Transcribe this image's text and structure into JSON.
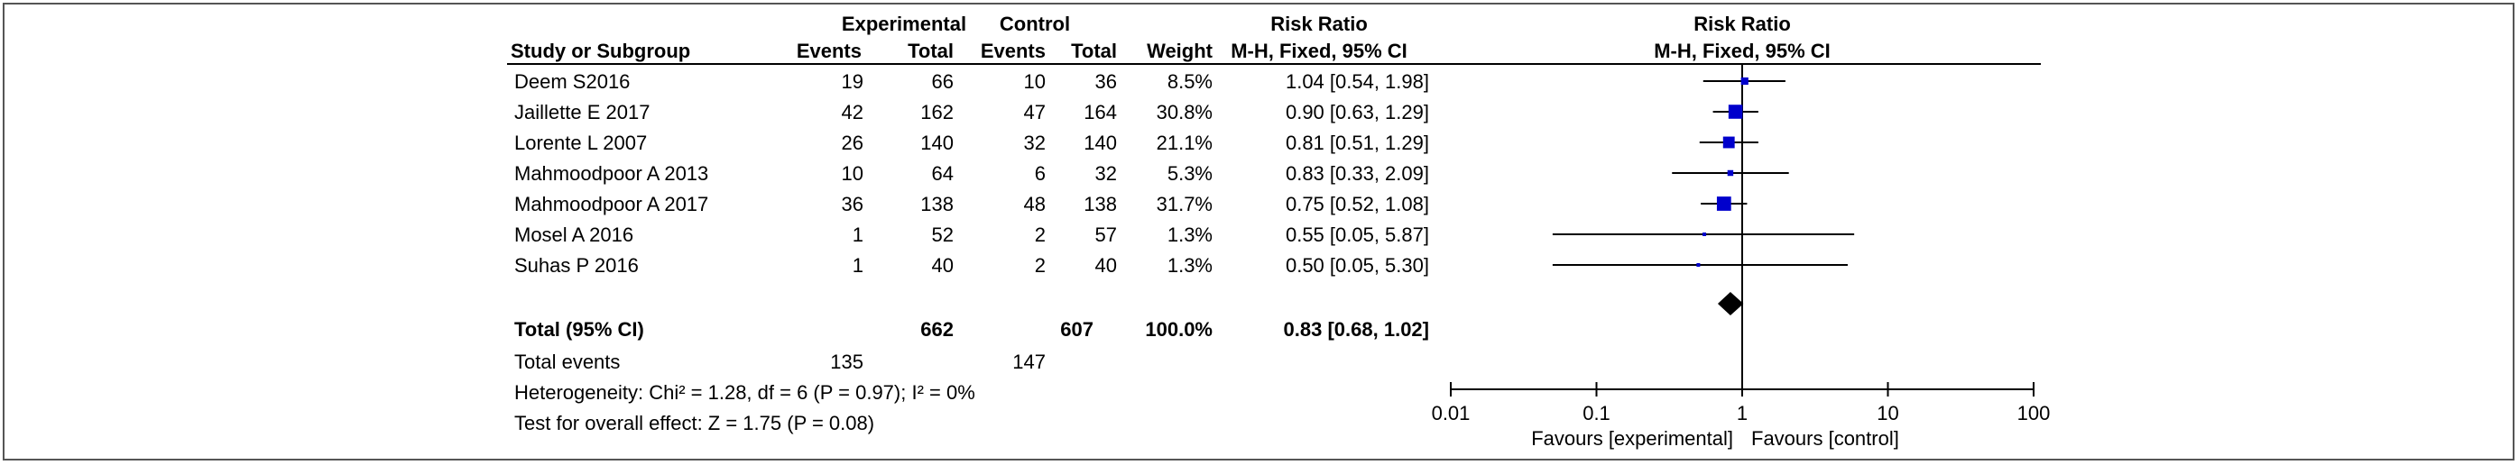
{
  "headers": {
    "group1": "Experimental",
    "group2": "Control",
    "rr_left": "Risk Ratio",
    "rr_right": "Risk Ratio",
    "study": "Study or Subgroup",
    "events1": "Events",
    "total1": "Total",
    "events2": "Events",
    "total2": "Total",
    "weight": "Weight",
    "method_left": "M-H, Fixed, 95% CI",
    "method_right": "M-H, Fixed, 95% CI"
  },
  "studies": [
    {
      "name": "Deem S2016",
      "e_events": "19",
      "e_total": "66",
      "c_events": "10",
      "c_total": "36",
      "weight": "8.5%",
      "ci_text": "1.04 [0.54, 1.98]"
    },
    {
      "name": "Jaillette E 2017",
      "e_events": "42",
      "e_total": "162",
      "c_events": "47",
      "c_total": "164",
      "weight": "30.8%",
      "ci_text": "0.90 [0.63, 1.29]"
    },
    {
      "name": "Lorente L 2007",
      "e_events": "26",
      "e_total": "140",
      "c_events": "32",
      "c_total": "140",
      "weight": "21.1%",
      "ci_text": "0.81 [0.51, 1.29]"
    },
    {
      "name": "Mahmoodpoor A 2013",
      "e_events": "10",
      "e_total": "64",
      "c_events": "6",
      "c_total": "32",
      "weight": "5.3%",
      "ci_text": "0.83 [0.33, 2.09]"
    },
    {
      "name": "Mahmoodpoor A 2017",
      "e_events": "36",
      "e_total": "138",
      "c_events": "48",
      "c_total": "138",
      "weight": "31.7%",
      "ci_text": "0.75 [0.52, 1.08]"
    },
    {
      "name": "Mosel A 2016",
      "e_events": "1",
      "e_total": "52",
      "c_events": "2",
      "c_total": "57",
      "weight": "1.3%",
      "ci_text": "0.55 [0.05, 5.87]"
    },
    {
      "name": "Suhas P 2016",
      "e_events": "1",
      "e_total": "40",
      "c_events": "2",
      "c_total": "40",
      "weight": "1.3%",
      "ci_text": "0.50 [0.05, 5.30]"
    }
  ],
  "total": {
    "label": "Total (95% CI)",
    "e_total": "662",
    "c_total": "607",
    "weight": "100.0%",
    "ci_text": "0.83 [0.68, 1.02]"
  },
  "total_events": {
    "label": "Total events",
    "e_events": "135",
    "c_events": "147"
  },
  "heterogeneity": "Heterogeneity: Chi² = 1.28, df = 6 (P = 0.97); I² = 0%",
  "overall_effect": "Test for overall effect: Z = 1.75 (P = 0.08)",
  "favours_left": "Favours [experimental]",
  "favours_right": "Favours [control]",
  "colors": {
    "study_marker": "#0000cc",
    "total_marker": "#000000",
    "line": "#000000"
  },
  "chart_data": {
    "type": "forest",
    "scale": "log",
    "xlim": [
      0.01,
      100
    ],
    "ticks": [
      0.01,
      0.1,
      1,
      10,
      100
    ],
    "tick_labels": [
      "0.01",
      "0.1",
      "1",
      "10",
      "100"
    ],
    "null_line": 1,
    "studies": [
      {
        "name": "Deem S2016",
        "rr": 1.04,
        "lo": 0.54,
        "hi": 1.98,
        "weight": 8.5
      },
      {
        "name": "Jaillette E 2017",
        "rr": 0.9,
        "lo": 0.63,
        "hi": 1.29,
        "weight": 30.8
      },
      {
        "name": "Lorente L 2007",
        "rr": 0.81,
        "lo": 0.51,
        "hi": 1.29,
        "weight": 21.1
      },
      {
        "name": "Mahmoodpoor A 2013",
        "rr": 0.83,
        "lo": 0.33,
        "hi": 2.09,
        "weight": 5.3
      },
      {
        "name": "Mahmoodpoor A 2017",
        "rr": 0.75,
        "lo": 0.52,
        "hi": 1.08,
        "weight": 31.7
      },
      {
        "name": "Mosel A 2016",
        "rr": 0.55,
        "lo": 0.05,
        "hi": 5.87,
        "weight": 1.3
      },
      {
        "name": "Suhas P 2016",
        "rr": 0.5,
        "lo": 0.05,
        "hi": 5.3,
        "weight": 1.3
      }
    ],
    "pooled": {
      "rr": 0.83,
      "lo": 0.68,
      "hi": 1.02
    }
  }
}
